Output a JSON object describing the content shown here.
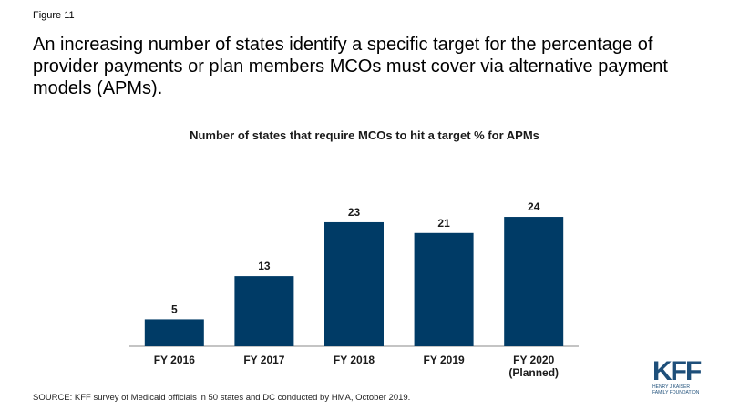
{
  "figure_label": "Figure 11",
  "headline": "An increasing number of states identify a specific target for the percentage of provider payments or plan members MCOs must cover via alternative payment models (APMs).",
  "source": "SOURCE: KFF survey of Medicaid officials in 50 states and DC conducted by HMA, October 2019.",
  "logo": {
    "mark": "KFF",
    "line1": "HENRY J KAISER",
    "line2": "FAMILY FOUNDATION"
  },
  "colors": {
    "bar": "#003b66",
    "logo": "#1e4f7a"
  },
  "chart_data": {
    "type": "bar",
    "title": "Number of states that require MCOs to hit a target % for APMs",
    "categories": [
      [
        "FY 2016"
      ],
      [
        "FY 2017"
      ],
      [
        "FY 2018"
      ],
      [
        "FY 2019"
      ],
      [
        "FY 2020",
        "(Planned)"
      ]
    ],
    "values": [
      5,
      13,
      23,
      21,
      24
    ],
    "ylim": [
      0,
      30
    ],
    "grid": false,
    "data_labels": true
  }
}
